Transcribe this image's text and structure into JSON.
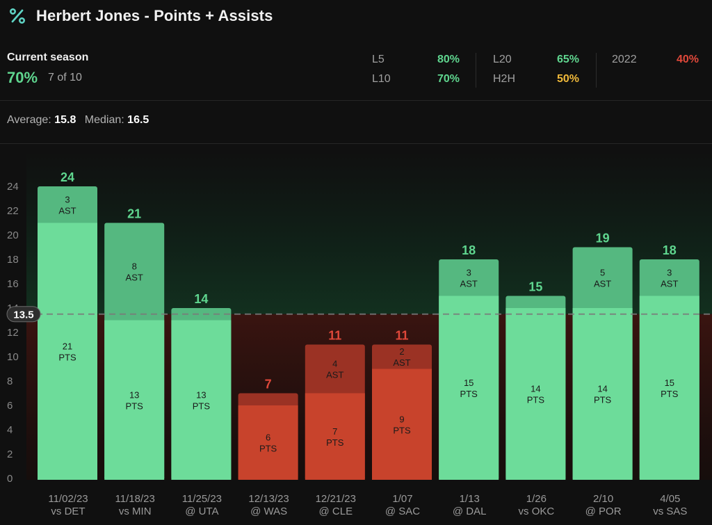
{
  "header": {
    "title": "Herbert Jones - Points + Assists",
    "icon": "percent-icon"
  },
  "season": {
    "label": "Current season",
    "pct": "70%",
    "count": "7 of 10"
  },
  "splits": [
    {
      "label": "L5",
      "value": "80%",
      "color": "#5fd68f"
    },
    {
      "label": "L10",
      "value": "70%",
      "color": "#5fd68f"
    },
    {
      "label": "L20",
      "value": "65%",
      "color": "#5fd68f"
    },
    {
      "label": "H2H",
      "value": "50%",
      "color": "#f0b93a"
    },
    {
      "label": "2022",
      "value": "40%",
      "color": "#e0483a"
    }
  ],
  "summary": {
    "average_label": "Average:",
    "average": "15.8",
    "median_label": "Median:",
    "median": "16.5"
  },
  "colors": {
    "over_main": "#6ddc9a",
    "over_top": "#55b880",
    "under_main": "#c8432c",
    "under_top": "#9b3224",
    "over_text": "#5fd68f",
    "under_text": "#e0483a"
  },
  "chart_data": {
    "type": "bar",
    "stacked": true,
    "line": 13.5,
    "line_label": "13.5",
    "ylim": [
      0,
      24
    ],
    "yticks": [
      0,
      2,
      4,
      6,
      8,
      10,
      12,
      14,
      16,
      18,
      20,
      22,
      24
    ],
    "categories": [
      [
        "11/02/23",
        "vs DET"
      ],
      [
        "11/18/23",
        "vs MIN"
      ],
      [
        "11/25/23",
        "@ UTA"
      ],
      [
        "12/13/23",
        "@ WAS"
      ],
      [
        "12/21/23",
        "@ CLE"
      ],
      [
        "1/07",
        "@ SAC"
      ],
      [
        "1/13",
        "@ DAL"
      ],
      [
        "1/26",
        "vs OKC"
      ],
      [
        "2/10",
        "@ POR"
      ],
      [
        "4/05",
        "vs SAS"
      ]
    ],
    "series": [
      {
        "name": "PTS",
        "values": [
          21,
          13,
          13,
          6,
          7,
          9,
          15,
          14,
          14,
          15
        ]
      },
      {
        "name": "AST",
        "values": [
          3,
          8,
          1,
          1,
          4,
          2,
          3,
          1,
          5,
          3
        ]
      }
    ],
    "totals": [
      24,
      21,
      14,
      7,
      11,
      11,
      18,
      15,
      19,
      18
    ],
    "ast_labels_shown": [
      true,
      true,
      false,
      false,
      true,
      true,
      true,
      false,
      true,
      true
    ]
  }
}
